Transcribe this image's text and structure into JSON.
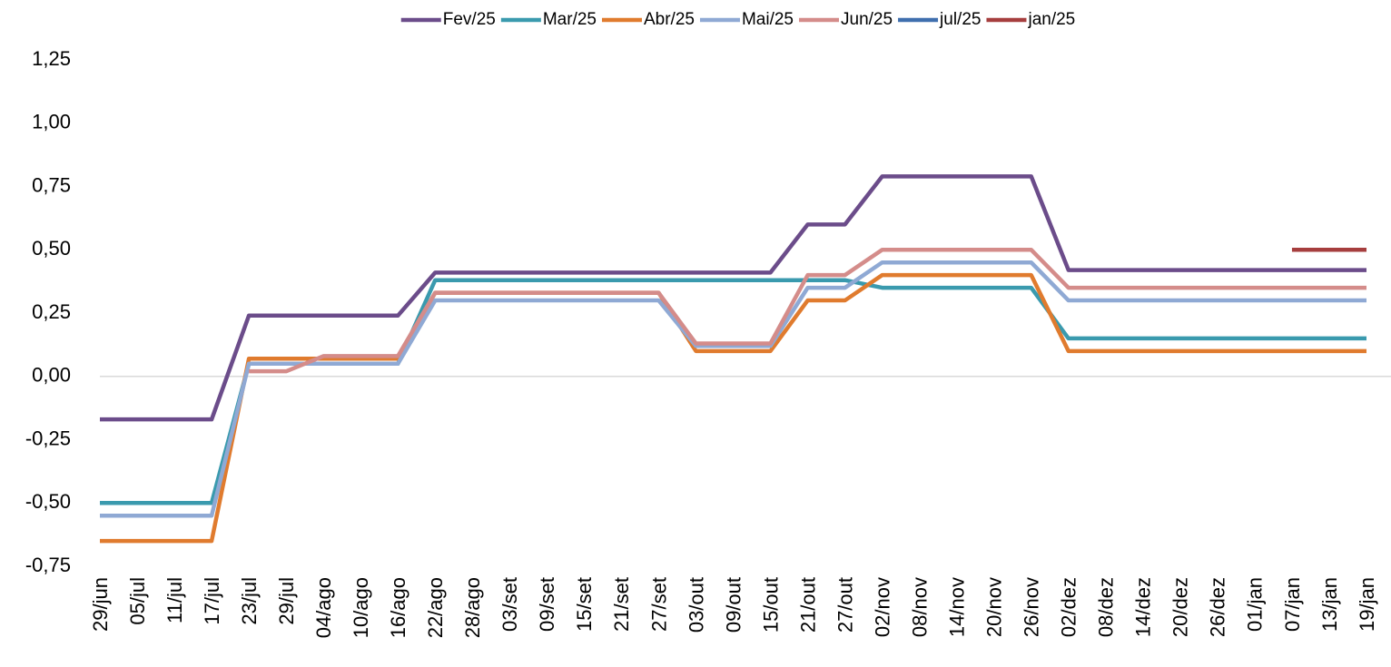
{
  "chart_data": {
    "type": "line",
    "categories": [
      "29/jun",
      "05/jul",
      "11/jul",
      "17/jul",
      "23/jul",
      "29/jul",
      "04/ago",
      "10/ago",
      "16/ago",
      "22/ago",
      "28/ago",
      "03/set",
      "09/set",
      "15/set",
      "21/set",
      "27/set",
      "03/out",
      "09/out",
      "15/out",
      "21/out",
      "27/out",
      "02/nov",
      "08/nov",
      "14/nov",
      "20/nov",
      "26/nov",
      "02/dez",
      "08/dez",
      "14/dez",
      "20/dez",
      "26/dez",
      "01/jan",
      "07/jan",
      "13/jan",
      "19/jan"
    ],
    "series": [
      {
        "name": "Fev/25",
        "color": "#6B4C8A",
        "values": [
          -0.17,
          -0.17,
          -0.17,
          -0.17,
          0.24,
          0.24,
          0.24,
          0.24,
          0.24,
          0.41,
          0.41,
          0.41,
          0.41,
          0.41,
          0.41,
          0.41,
          0.41,
          0.41,
          0.41,
          0.6,
          0.6,
          0.79,
          0.79,
          0.79,
          0.79,
          0.79,
          0.42,
          0.42,
          0.42,
          0.42,
          0.42,
          0.42,
          0.42,
          0.42,
          0.42
        ]
      },
      {
        "name": "Mar/25",
        "color": "#3A9AAE",
        "values": [
          -0.5,
          -0.5,
          -0.5,
          -0.5,
          0.05,
          0.05,
          0.05,
          0.05,
          0.05,
          0.38,
          0.38,
          0.38,
          0.38,
          0.38,
          0.38,
          0.38,
          0.38,
          0.38,
          0.38,
          0.38,
          0.38,
          0.35,
          0.35,
          0.35,
          0.35,
          0.35,
          0.15,
          0.15,
          0.15,
          0.15,
          0.15,
          0.15,
          0.15,
          0.15,
          0.15
        ]
      },
      {
        "name": "Abr/25",
        "color": "#E07B2E",
        "values": [
          -0.65,
          -0.65,
          -0.65,
          -0.65,
          0.07,
          0.07,
          0.07,
          0.07,
          0.07,
          0.33,
          0.33,
          0.33,
          0.33,
          0.33,
          0.33,
          0.33,
          0.1,
          0.1,
          0.1,
          0.3,
          0.3,
          0.4,
          0.4,
          0.4,
          0.4,
          0.4,
          0.1,
          0.1,
          0.1,
          0.1,
          0.1,
          0.1,
          0.1,
          0.1,
          0.1
        ]
      },
      {
        "name": "Mai/25",
        "color": "#8FA9D4",
        "values": [
          -0.55,
          -0.55,
          -0.55,
          -0.55,
          0.05,
          0.05,
          0.05,
          0.05,
          0.05,
          0.3,
          0.3,
          0.3,
          0.3,
          0.3,
          0.3,
          0.3,
          0.12,
          0.12,
          0.12,
          0.35,
          0.35,
          0.45,
          0.45,
          0.45,
          0.45,
          0.45,
          0.3,
          0.3,
          0.3,
          0.3,
          0.3,
          0.3,
          0.3,
          0.3,
          0.3
        ]
      },
      {
        "name": "Jun/25",
        "color": "#D48C8A",
        "values": [
          null,
          null,
          null,
          null,
          0.02,
          0.02,
          0.08,
          0.08,
          0.08,
          0.33,
          0.33,
          0.33,
          0.33,
          0.33,
          0.33,
          0.33,
          0.13,
          0.13,
          0.13,
          0.4,
          0.4,
          0.5,
          0.5,
          0.5,
          0.5,
          0.5,
          0.35,
          0.35,
          0.35,
          0.35,
          0.35,
          0.35,
          0.35,
          0.35,
          0.35
        ]
      },
      {
        "name": "jul/25",
        "color": "#3F6FAE",
        "values": [
          null,
          null,
          null,
          null,
          null,
          null,
          null,
          null,
          null,
          null,
          null,
          null,
          null,
          null,
          null,
          null,
          null,
          null,
          null,
          null,
          null,
          null,
          null,
          null,
          null,
          null,
          null,
          null,
          null,
          null,
          null,
          null,
          null,
          null,
          null
        ]
      },
      {
        "name": "jan/25",
        "color": "#A63E3E",
        "values": [
          null,
          null,
          null,
          null,
          null,
          null,
          null,
          null,
          null,
          null,
          null,
          null,
          null,
          null,
          null,
          null,
          null,
          null,
          null,
          null,
          null,
          null,
          null,
          null,
          null,
          null,
          null,
          null,
          null,
          null,
          null,
          null,
          0.5,
          0.5,
          0.5
        ]
      }
    ],
    "ylim": [
      -0.75,
      1.25
    ],
    "yticks": [
      {
        "value": -0.75,
        "label": "-0,75"
      },
      {
        "value": -0.5,
        "label": "-0,50"
      },
      {
        "value": -0.25,
        "label": "-0,25"
      },
      {
        "value": 0,
        "label": "0,00"
      },
      {
        "value": 0.25,
        "label": "0,25"
      },
      {
        "value": 0.5,
        "label": "0,50"
      },
      {
        "value": 0.75,
        "label": "0,75"
      },
      {
        "value": 1,
        "label": "1,00"
      },
      {
        "value": 1.25,
        "label": "1,25"
      }
    ],
    "grid": false,
    "legend": "top"
  }
}
